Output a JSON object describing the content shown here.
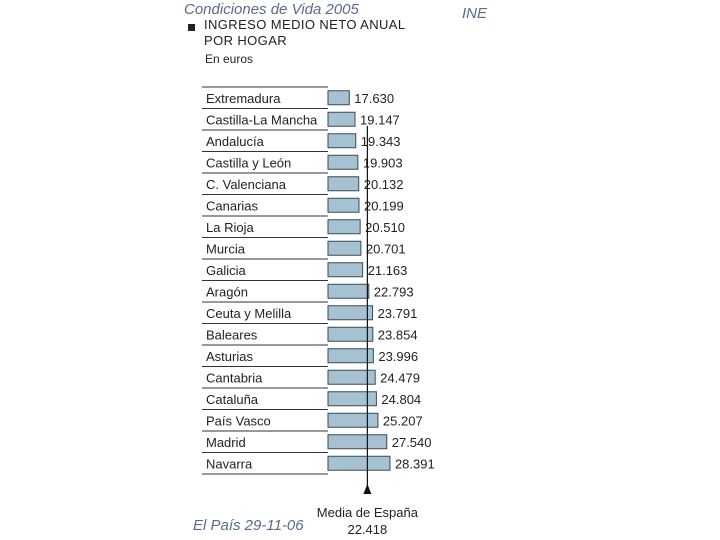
{
  "header": {
    "title": "Condiciones de Vida 2005",
    "source": "INE"
  },
  "footer": {
    "source": "El País 29-11-06"
  },
  "chart_data": {
    "type": "bar",
    "orientation": "horizontal",
    "title": "INGRESO MEDIO NETO ANUAL\nPOR HOGAR",
    "unit": "En euros",
    "categories": [
      "Extremadura",
      "Castilla-La Mancha",
      "Andalucía",
      "Castilla y León",
      "C. Valenciana",
      "Canarias",
      "La Rioja",
      "Murcia",
      "Galicia",
      "Aragón",
      "Ceuta y Melilla",
      "Baleares",
      "Asturias",
      "Cantabria",
      "Cataluña",
      "País Vasco",
      "Madrid",
      "Navarra"
    ],
    "values": [
      17630,
      19147,
      19343,
      19903,
      20132,
      20199,
      20510,
      20701,
      21163,
      22793,
      23791,
      23854,
      23996,
      24479,
      24804,
      25207,
      27540,
      28391
    ],
    "value_labels": [
      "17.630",
      "19.147",
      "19.343",
      "19.903",
      "20.132",
      "20.199",
      "20.510",
      "20.701",
      "21.163",
      "22.793",
      "23.791",
      "23.854",
      "23.996",
      "24.479",
      "24.804",
      "25.207",
      "27.540",
      "28.391"
    ],
    "reference_line": {
      "label": "Media de España",
      "value": 22418,
      "value_label": "22.418"
    },
    "x_axis_shown": false,
    "grid": false,
    "legend": "none",
    "colors": {
      "bar_fill": "#a5c1d2",
      "bar_stroke": "#3a4a55",
      "text": "#222222",
      "header_text": "#5a6a8a"
    }
  }
}
